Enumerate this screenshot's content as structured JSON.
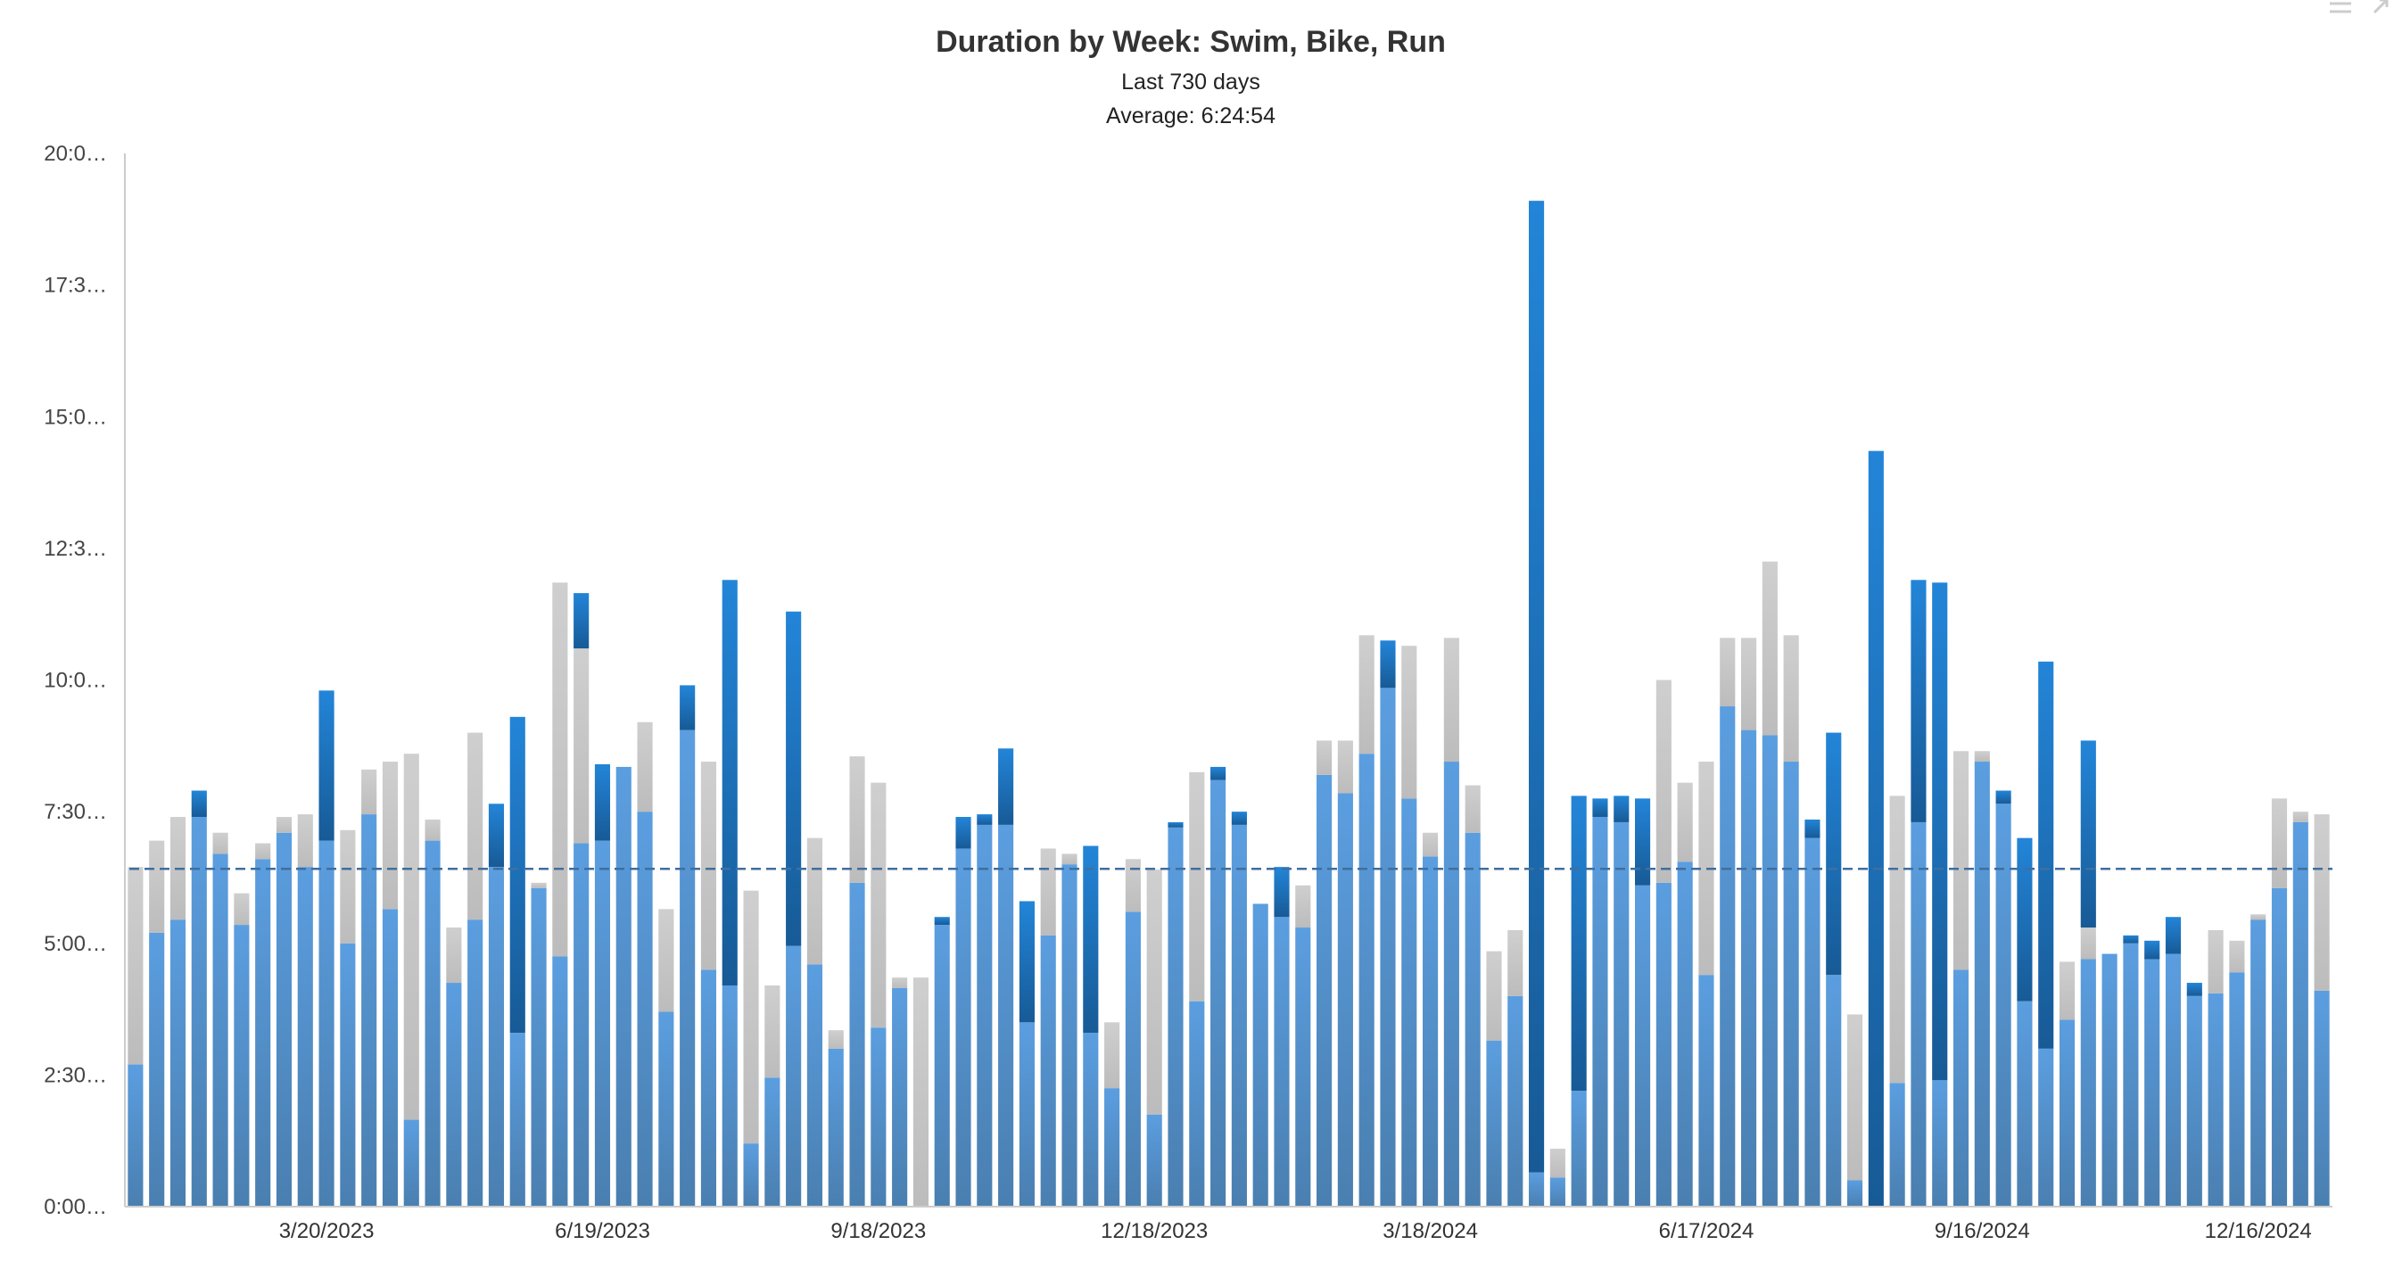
{
  "chart_data": {
    "type": "bar",
    "stacked": true,
    "title": "Duration by Week: Swim, Bike, Run",
    "subtitles": [
      "Last 730 days",
      "Average: 6:24:54"
    ],
    "y_unit": "hours",
    "ylim": [
      0,
      20
    ],
    "y_ticks": [
      "0:00…",
      "2:30…",
      "5:00…",
      "7:30…",
      "10:0…",
      "12:3…",
      "15:0…",
      "17:3…",
      "20:0…"
    ],
    "x_ticks": [
      "3/20/2023",
      "6/19/2023",
      "9/18/2023",
      "12/18/2023",
      "3/18/2024",
      "6/17/2024",
      "9/16/2024",
      "12/16/2024"
    ],
    "average_hours": 6.415,
    "grid": false,
    "legend": "none",
    "colors": {
      "bike": "#5b9bd5",
      "run": "#c8c8c8",
      "swim": "#1f6db0",
      "average_line": "#3f6f9f"
    },
    "series": [
      {
        "key": "bike",
        "values": [
          2.7,
          5.2,
          5.45,
          7.4,
          6.7,
          5.35,
          6.6,
          7.1,
          6.45,
          6.95,
          5.0,
          7.45,
          5.65,
          1.65,
          6.95,
          4.25,
          5.45,
          6.45,
          3.3,
          6.05,
          4.75,
          6.9,
          6.95,
          8.35,
          7.5,
          3.7,
          9.05,
          4.5,
          4.2,
          1.2,
          2.45,
          4.95,
          4.6,
          3.0,
          6.15,
          3.4,
          4.15,
          0.0,
          5.35,
          6.8,
          7.25,
          7.25,
          3.5,
          5.15,
          6.5,
          3.3,
          2.25,
          5.6,
          1.75,
          7.2,
          3.9,
          8.1,
          7.25,
          5.75,
          5.5,
          5.3,
          8.2,
          7.85,
          8.6,
          9.85,
          7.75,
          6.65,
          8.45,
          7.1,
          3.15,
          4.0,
          0.65,
          0.55,
          2.2,
          7.4,
          7.3,
          6.1,
          6.15,
          6.55,
          4.4,
          9.5,
          9.05,
          8.95,
          8.45,
          7.0,
          4.4,
          0.5,
          0.0,
          2.35,
          7.3,
          2.4,
          4.5,
          8.45,
          7.65,
          3.9,
          3.0,
          3.55,
          4.7,
          4.8,
          5.0,
          4.7,
          4.8,
          4.0,
          4.05,
          4.45,
          5.45,
          6.05,
          7.3,
          4.1
        ]
      },
      {
        "key": "run",
        "values": [
          3.75,
          1.75,
          1.95,
          0.0,
          0.4,
          0.6,
          0.3,
          0.3,
          1.0,
          0.0,
          2.15,
          0.85,
          2.8,
          6.95,
          0.4,
          1.05,
          3.55,
          0.0,
          0.0,
          0.1,
          7.1,
          3.7,
          0.0,
          0.0,
          1.7,
          1.95,
          0.0,
          3.95,
          0.0,
          4.8,
          1.75,
          0.0,
          2.4,
          0.35,
          2.4,
          4.65,
          0.2,
          4.35,
          0.0,
          0.0,
          0.0,
          0.0,
          0.0,
          1.65,
          0.2,
          0.0,
          1.25,
          1.0,
          4.65,
          0.0,
          4.35,
          0.0,
          0.0,
          0.0,
          0.0,
          0.8,
          0.65,
          1.0,
          2.25,
          0.0,
          2.9,
          0.45,
          2.35,
          0.9,
          1.7,
          1.25,
          0.0,
          0.55,
          0.0,
          0.0,
          0.0,
          0.0,
          3.85,
          1.5,
          4.05,
          1.3,
          1.75,
          3.3,
          2.4,
          0.0,
          0.0,
          3.15,
          0.0,
          5.45,
          0.0,
          0.0,
          4.15,
          0.2,
          0.0,
          0.0,
          0.0,
          1.1,
          0.6,
          0.0,
          0.0,
          0.0,
          0.0,
          0.0,
          1.2,
          0.6,
          0.1,
          1.7,
          0.2,
          3.35
        ]
      },
      {
        "key": "swim",
        "values": [
          0.0,
          0.0,
          0.0,
          0.5,
          0.0,
          0.0,
          0.0,
          0.0,
          0.0,
          2.85,
          0.0,
          0.0,
          0.0,
          0.0,
          0.0,
          0.0,
          0.0,
          1.2,
          6.0,
          0.0,
          0.0,
          1.05,
          1.45,
          0.0,
          0.0,
          0.0,
          0.85,
          0.0,
          7.7,
          0.0,
          0.0,
          6.35,
          0.0,
          0.0,
          0.0,
          0.0,
          0.0,
          0.0,
          0.15,
          0.6,
          0.2,
          1.45,
          2.3,
          0.0,
          0.0,
          3.55,
          0.0,
          0.0,
          0.0,
          0.1,
          0.0,
          0.25,
          0.25,
          0.0,
          0.95,
          0.0,
          0.0,
          0.0,
          0.0,
          0.9,
          0.0,
          0.0,
          0.0,
          0.0,
          0.0,
          0.0,
          18.45,
          0.0,
          5.6,
          0.35,
          0.5,
          1.65,
          0.0,
          0.0,
          0.0,
          0.0,
          0.0,
          0.0,
          0.0,
          0.35,
          4.6,
          0.0,
          14.35,
          0.0,
          4.6,
          9.45,
          0.0,
          0.0,
          0.25,
          3.1,
          7.35,
          0.0,
          3.55,
          0.0,
          0.15,
          0.35,
          0.7,
          0.25,
          0.0,
          0.0,
          0.0,
          0.0,
          0.0,
          0.0
        ]
      }
    ]
  }
}
